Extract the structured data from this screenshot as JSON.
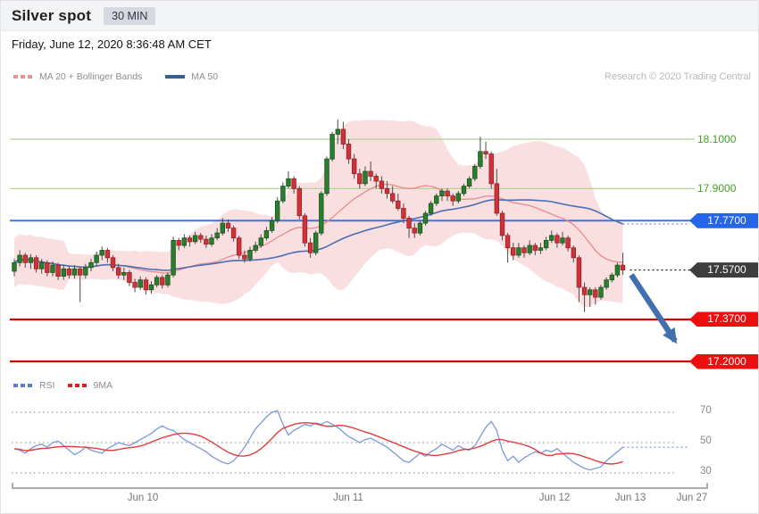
{
  "header": {
    "title": "Silver spot",
    "timeframe": "30 MIN"
  },
  "timestamp": "Friday, June 12, 2020 8:36:48 AM CET",
  "credit": "Research © 2020 Trading Central",
  "legend_main": [
    {
      "label": "MA 20 + Bollinger Bands",
      "color": "#ef8f8f",
      "style": "dashed"
    },
    {
      "label": "MA 50",
      "color": "#36608f",
      "style": "solid"
    }
  ],
  "legend_rsi": [
    {
      "label": "RSI",
      "color": "#5b7fd0",
      "style": "dashed"
    },
    {
      "label": "9MA",
      "color": "#e02020",
      "style": "dashed"
    }
  ],
  "chart_data": {
    "type": "candlestick",
    "title": "Silver spot 30 MIN with MA20+Bollinger Bands, MA50, RSI(9MA) and support/resistance levels",
    "x_labels": [
      "Jun 10",
      "Jun 11",
      "Jun 12",
      "Jun 13",
      "Jun 27"
    ],
    "price_levels": [
      {
        "label": "18.1000",
        "value": 18.1,
        "line_color": "#a8d38d",
        "label_color": "#43a024",
        "line_style": "solid",
        "line_width": 1.2
      },
      {
        "label": "17.9000",
        "value": 17.9,
        "line_color": "#a8d38d",
        "label_color": "#43a024",
        "line_style": "solid",
        "line_width": 1.2
      },
      {
        "label": "17.7700",
        "value": 17.77,
        "line_color": "#3b74e8",
        "badge_color": "#2566e8",
        "line_style": "solid",
        "line_width": 2
      },
      {
        "label": "17.5700",
        "value": 17.57,
        "line_color": "#2a2a2a",
        "badge_color": "#3d3d3d",
        "line_style": "dotted",
        "line_width": 1.4
      },
      {
        "label": "17.3700",
        "value": 17.37,
        "line_color": "#d40404",
        "badge_color": "#ed0f0f",
        "line_style": "solid",
        "line_width": 2.2
      },
      {
        "label": "17.2000",
        "value": 17.2,
        "line_color": "#d40404",
        "badge_color": "#ed0f0f",
        "line_style": "solid",
        "line_width": 2.2
      }
    ],
    "colors": {
      "candle_up": "#2a7d2f",
      "candle_up_border": "#18551d",
      "candle_down": "#cd3338",
      "candle_down_border": "#9a2024",
      "wick": "#4a4a4a",
      "bollinger_fill": "rgba(244,178,184,0.42)",
      "ma20_line": "#e98b8b",
      "ma50_line": "#4a6fb3",
      "ma50_dotted": "#8fa3c4",
      "rsi_line": "#7d98dd",
      "rsi_ma_line": "#e23c3c",
      "arrow": "#4070ad",
      "grid_dots": "#9a9a9a",
      "axis": "#adadad"
    },
    "indicators": {
      "ma_short": 20,
      "ma_long": 50,
      "bollinger_k": 2,
      "rsi_ma": 9
    },
    "candles": [
      [
        17.565,
        17.615,
        17.545,
        17.6
      ],
      [
        17.6,
        17.65,
        17.585,
        17.63
      ],
      [
        17.63,
        17.64,
        17.58,
        17.6
      ],
      [
        17.6,
        17.635,
        17.575,
        17.62
      ],
      [
        17.62,
        17.63,
        17.56,
        17.575
      ],
      [
        17.575,
        17.615,
        17.555,
        17.6
      ],
      [
        17.6,
        17.61,
        17.545,
        17.56
      ],
      [
        17.56,
        17.605,
        17.545,
        17.59
      ],
      [
        17.59,
        17.6,
        17.53,
        17.545
      ],
      [
        17.545,
        17.59,
        17.53,
        17.575
      ],
      [
        17.575,
        17.585,
        17.535,
        17.55
      ],
      [
        17.55,
        17.59,
        17.535,
        17.575
      ],
      [
        17.575,
        17.585,
        17.44,
        17.55
      ],
      [
        17.55,
        17.595,
        17.535,
        17.58
      ],
      [
        17.58,
        17.615,
        17.565,
        17.6
      ],
      [
        17.6,
        17.645,
        17.585,
        17.63
      ],
      [
        17.63,
        17.665,
        17.61,
        17.65
      ],
      [
        17.65,
        17.66,
        17.6,
        17.62
      ],
      [
        17.62,
        17.63,
        17.565,
        17.58
      ],
      [
        17.58,
        17.595,
        17.535,
        17.55
      ],
      [
        17.55,
        17.58,
        17.53,
        17.56
      ],
      [
        17.56,
        17.57,
        17.505,
        17.52
      ],
      [
        17.52,
        17.535,
        17.48,
        17.5
      ],
      [
        17.5,
        17.545,
        17.49,
        17.53
      ],
      [
        17.53,
        17.54,
        17.47,
        17.49
      ],
      [
        17.49,
        17.525,
        17.475,
        17.51
      ],
      [
        17.51,
        17.55,
        17.5,
        17.54
      ],
      [
        17.54,
        17.55,
        17.495,
        17.51
      ],
      [
        17.51,
        17.56,
        17.5,
        17.55
      ],
      [
        17.55,
        17.705,
        17.54,
        17.69
      ],
      [
        17.69,
        17.7,
        17.65,
        17.67
      ],
      [
        17.67,
        17.715,
        17.66,
        17.7
      ],
      [
        17.7,
        17.71,
        17.665,
        17.685
      ],
      [
        17.685,
        17.725,
        17.675,
        17.71
      ],
      [
        17.71,
        17.72,
        17.68,
        17.695
      ],
      [
        17.695,
        17.71,
        17.66,
        17.675
      ],
      [
        17.675,
        17.715,
        17.665,
        17.7
      ],
      [
        17.7,
        17.74,
        17.69,
        17.72
      ],
      [
        17.72,
        17.78,
        17.71,
        17.76
      ],
      [
        17.76,
        17.775,
        17.725,
        17.74
      ],
      [
        17.74,
        17.75,
        17.685,
        17.7
      ],
      [
        17.7,
        17.71,
        17.615,
        17.63
      ],
      [
        17.63,
        17.65,
        17.6,
        17.615
      ],
      [
        17.615,
        17.665,
        17.605,
        17.65
      ],
      [
        17.65,
        17.685,
        17.64,
        17.67
      ],
      [
        17.67,
        17.715,
        17.66,
        17.7
      ],
      [
        17.7,
        17.745,
        17.69,
        17.73
      ],
      [
        17.73,
        17.785,
        17.72,
        17.77
      ],
      [
        17.77,
        17.865,
        17.76,
        17.85
      ],
      [
        17.85,
        17.925,
        17.84,
        17.91
      ],
      [
        17.91,
        17.97,
        17.9,
        17.94
      ],
      [
        17.94,
        17.95,
        17.88,
        17.9
      ],
      [
        17.9,
        17.91,
        17.775,
        17.79
      ],
      [
        17.79,
        17.8,
        17.665,
        17.68
      ],
      [
        17.68,
        17.7,
        17.62,
        17.64
      ],
      [
        17.64,
        17.73,
        17.63,
        17.72
      ],
      [
        17.72,
        17.89,
        17.71,
        17.88
      ],
      [
        17.88,
        18.03,
        17.87,
        18.02
      ],
      [
        18.02,
        18.13,
        18.01,
        18.12
      ],
      [
        18.12,
        18.18,
        18.08,
        18.14
      ],
      [
        18.14,
        18.17,
        18.06,
        18.08
      ],
      [
        18.08,
        18.1,
        18.0,
        18.02
      ],
      [
        18.02,
        18.04,
        17.94,
        17.96
      ],
      [
        17.96,
        17.98,
        17.9,
        17.92
      ],
      [
        17.92,
        17.99,
        17.91,
        17.97
      ],
      [
        17.97,
        18.01,
        17.93,
        17.95
      ],
      [
        17.95,
        17.96,
        17.9,
        17.93
      ],
      [
        17.93,
        17.95,
        17.88,
        17.9
      ],
      [
        17.9,
        17.93,
        17.86,
        17.88
      ],
      [
        17.88,
        17.91,
        17.84,
        17.85
      ],
      [
        17.85,
        17.88,
        17.81,
        17.82
      ],
      [
        17.82,
        17.84,
        17.76,
        17.78
      ],
      [
        17.78,
        17.79,
        17.7,
        17.74
      ],
      [
        17.74,
        17.76,
        17.7,
        17.72
      ],
      [
        17.72,
        17.77,
        17.71,
        17.76
      ],
      [
        17.76,
        17.81,
        17.75,
        17.8
      ],
      [
        17.8,
        17.85,
        17.79,
        17.84
      ],
      [
        17.84,
        17.88,
        17.83,
        17.87
      ],
      [
        17.87,
        17.9,
        17.85,
        17.89
      ],
      [
        17.89,
        17.9,
        17.85,
        17.87
      ],
      [
        17.87,
        17.88,
        17.83,
        17.85
      ],
      [
        17.85,
        17.89,
        17.84,
        17.88
      ],
      [
        17.88,
        17.92,
        17.87,
        17.91
      ],
      [
        17.91,
        17.95,
        17.9,
        17.94
      ],
      [
        17.94,
        18.0,
        17.93,
        17.99
      ],
      [
        17.99,
        18.11,
        17.98,
        18.05
      ],
      [
        18.05,
        18.09,
        18.02,
        18.04
      ],
      [
        18.04,
        18.05,
        17.9,
        17.92
      ],
      [
        17.92,
        17.98,
        17.79,
        17.8
      ],
      [
        17.8,
        17.81,
        17.69,
        17.71
      ],
      [
        17.71,
        17.72,
        17.6,
        17.66
      ],
      [
        17.66,
        17.68,
        17.61,
        17.63
      ],
      [
        17.63,
        17.68,
        17.62,
        17.66
      ],
      [
        17.66,
        17.67,
        17.62,
        17.64
      ],
      [
        17.64,
        17.69,
        17.63,
        17.67
      ],
      [
        17.67,
        17.68,
        17.63,
        17.65
      ],
      [
        17.65,
        17.68,
        17.635,
        17.66
      ],
      [
        17.66,
        17.705,
        17.65,
        17.69
      ],
      [
        17.69,
        17.73,
        17.68,
        17.71
      ],
      [
        17.71,
        17.72,
        17.66,
        17.68
      ],
      [
        17.68,
        17.725,
        17.67,
        17.7
      ],
      [
        17.7,
        17.71,
        17.645,
        17.66
      ],
      [
        17.66,
        17.67,
        17.6,
        17.62
      ],
      [
        17.62,
        17.63,
        17.44,
        17.5
      ],
      [
        17.5,
        17.52,
        17.4,
        17.47
      ],
      [
        17.47,
        17.5,
        17.42,
        17.49
      ],
      [
        17.49,
        17.5,
        17.43,
        17.46
      ],
      [
        17.46,
        17.51,
        17.45,
        17.5
      ],
      [
        17.5,
        17.54,
        17.49,
        17.53
      ],
      [
        17.53,
        17.56,
        17.52,
        17.55
      ],
      [
        17.55,
        17.6,
        17.54,
        17.59
      ],
      [
        17.59,
        17.64,
        17.55,
        17.57
      ]
    ],
    "rsi_panel": {
      "series": "RSI",
      "ma_series": "9MA",
      "ticks": [
        70,
        50,
        30
      ],
      "values": [
        46,
        45,
        43,
        46,
        48,
        49,
        47,
        50,
        51,
        48,
        45,
        42,
        44,
        47,
        45,
        44,
        43,
        46,
        48,
        50,
        49,
        48,
        50,
        52,
        54,
        56,
        59,
        61,
        59,
        58,
        55,
        52,
        50,
        48,
        46,
        44,
        41,
        39,
        37,
        36,
        38,
        42,
        47,
        53,
        59,
        63,
        67,
        70,
        71,
        62,
        55,
        58,
        60,
        62,
        61,
        63,
        62,
        64,
        62,
        60,
        57,
        54,
        52,
        50,
        52,
        53,
        51,
        49,
        47,
        44,
        41,
        38,
        37,
        40,
        43,
        41,
        44,
        46,
        49,
        47,
        45,
        48,
        46,
        45,
        48,
        54,
        60,
        64,
        58,
        45,
        38,
        41,
        37,
        40,
        42,
        44,
        43,
        45,
        44,
        46,
        43,
        40,
        37,
        35,
        33,
        32,
        33,
        34,
        38,
        41,
        44,
        47
      ]
    },
    "forecast_arrow": {
      "direction": "down",
      "from_price": 17.57,
      "to_price": 17.21
    }
  }
}
